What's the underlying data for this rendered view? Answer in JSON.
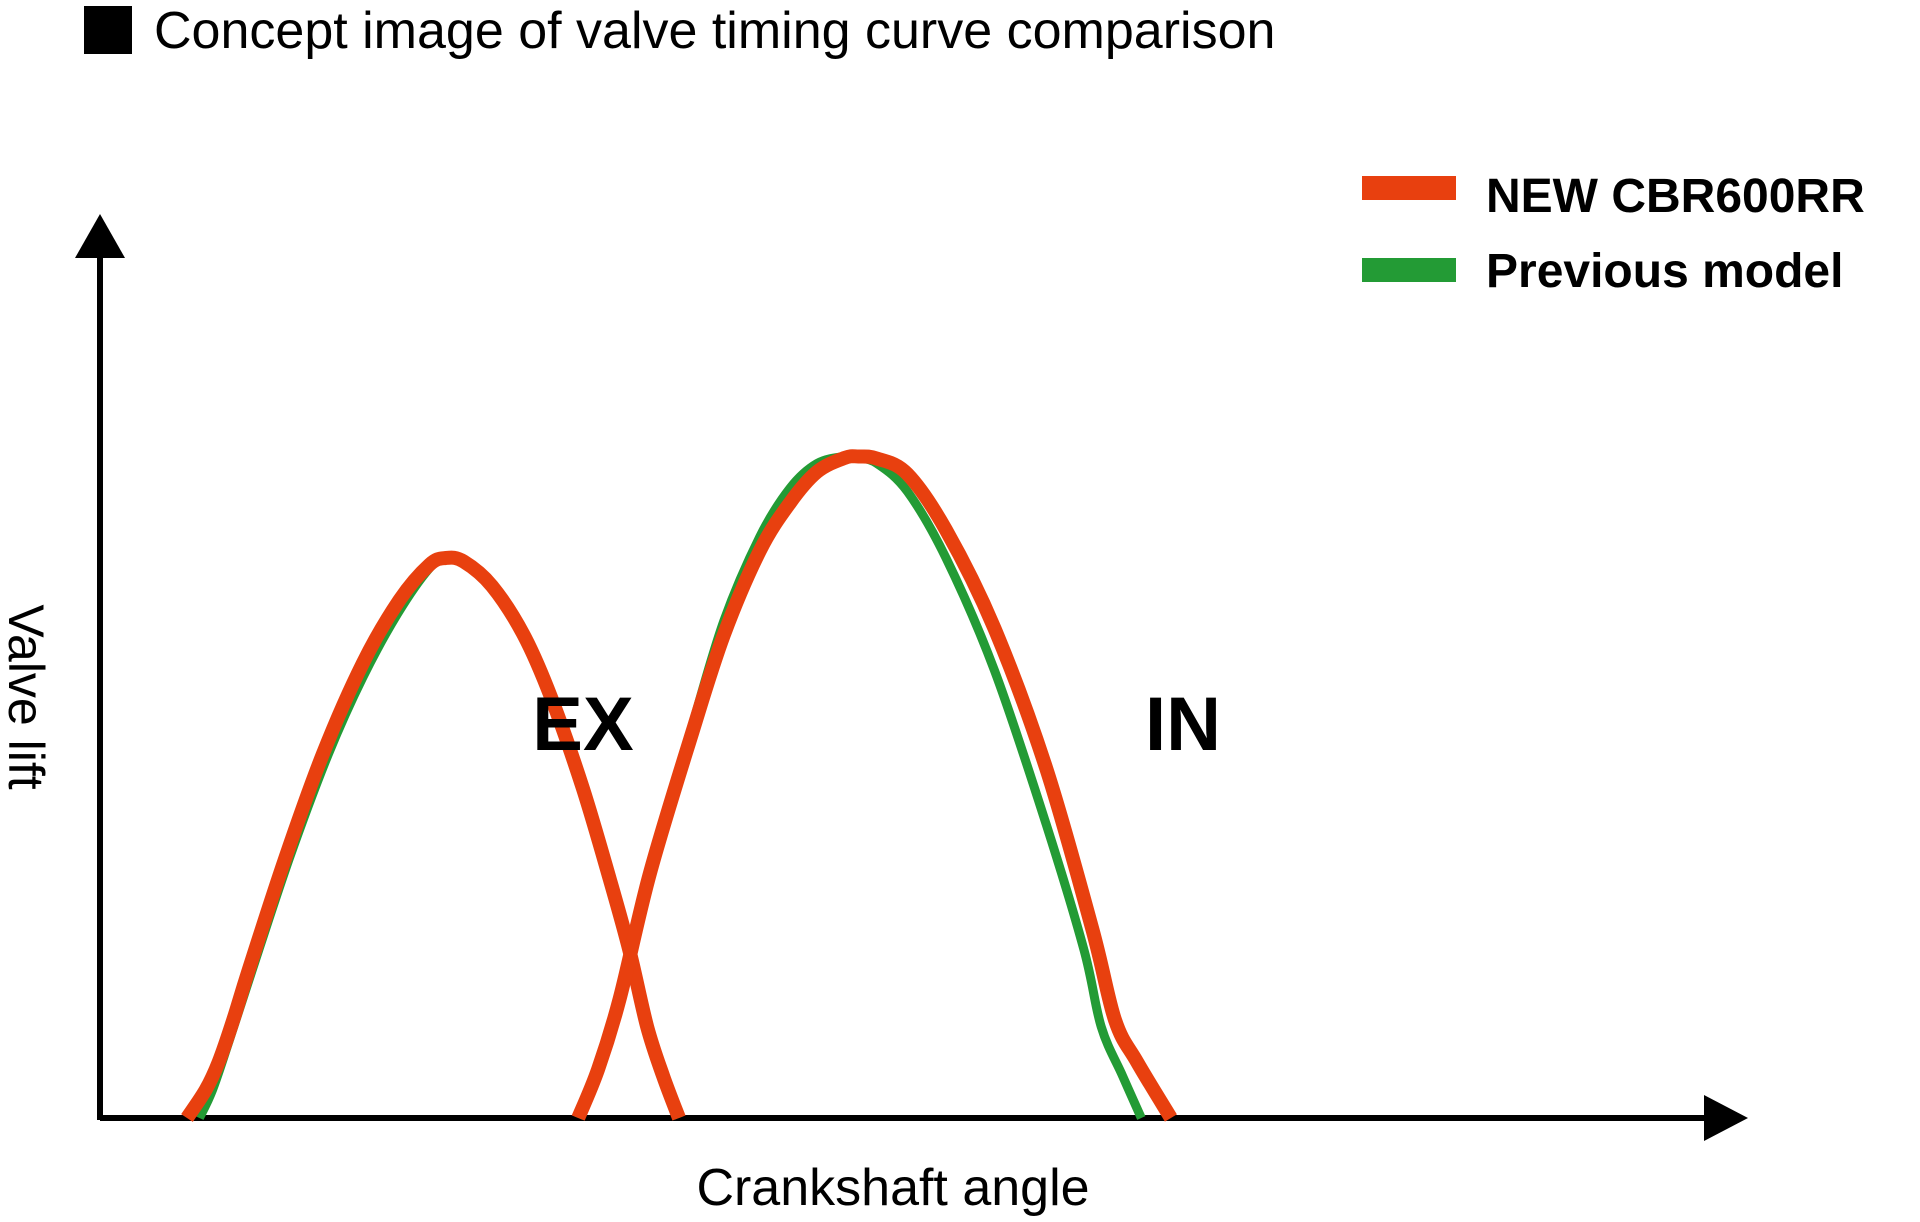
{
  "chart_data": {
    "type": "line",
    "title": "Concept image of valve timing curve comparison",
    "xlabel": "Crankshaft angle",
    "ylabel": "Valve lift",
    "legend_position": "top-right",
    "grid": false,
    "region_labels": [
      "EX",
      "IN"
    ],
    "series": [
      {
        "name": "NEW CBR600RR",
        "color": "#e8400f",
        "curves": [
          {
            "label": "EX",
            "points": [
              [
                0.0,
                0.0
              ],
              [
                0.027,
                0.04
              ],
              [
                0.046,
                0.08
              ],
              [
                0.067,
                0.14
              ],
              [
                0.089,
                0.21
              ],
              [
                0.142,
                0.37
              ],
              [
                0.197,
                0.52
              ],
              [
                0.255,
                0.65
              ],
              [
                0.308,
                0.74
              ],
              [
                0.351,
                0.79
              ],
              [
                0.375,
                0.8
              ],
              [
                0.401,
                0.795
              ],
              [
                0.442,
                0.76
              ],
              [
                0.488,
                0.69
              ],
              [
                0.528,
                0.6
              ],
              [
                0.574,
                0.47
              ],
              [
                0.613,
                0.34
              ],
              [
                0.641,
                0.24
              ],
              [
                0.667,
                0.13
              ],
              [
                0.69,
                0.06
              ],
              [
                0.713,
                0.0
              ]
            ]
          },
          {
            "label": "IN",
            "points": [
              [
                0.567,
                0.0
              ],
              [
                0.596,
                0.07
              ],
              [
                0.627,
                0.17
              ],
              [
                0.671,
                0.35
              ],
              [
                0.732,
                0.55
              ],
              [
                0.778,
                0.69
              ],
              [
                0.83,
                0.81
              ],
              [
                0.874,
                0.879
              ],
              [
                0.913,
                0.923
              ],
              [
                0.953,
                0.943
              ],
              [
                0.973,
                0.945
              ],
              [
                1.0,
                0.942
              ],
              [
                1.044,
                0.92
              ],
              [
                1.1,
                0.84
              ],
              [
                1.17,
                0.7
              ],
              [
                1.245,
                0.5
              ],
              [
                1.312,
                0.27
              ],
              [
                1.345,
                0.14
              ],
              [
                1.377,
                0.08
              ],
              [
                1.426,
                0.0
              ]
            ]
          }
        ]
      },
      {
        "name": "Previous model",
        "color": "#239b35",
        "curves": [
          {
            "label": "EX",
            "points": [
              [
                0.018,
                0.0
              ],
              [
                0.037,
                0.04
              ],
              [
                0.061,
                0.11
              ],
              [
                0.094,
                0.21
              ],
              [
                0.148,
                0.37
              ],
              [
                0.205,
                0.52
              ],
              [
                0.255,
                0.63
              ],
              [
                0.305,
                0.72
              ],
              [
                0.351,
                0.785
              ],
              [
                0.375,
                0.8
              ],
              [
                0.401,
                0.795
              ],
              [
                0.442,
                0.76
              ],
              [
                0.488,
                0.69
              ],
              [
                0.528,
                0.6
              ],
              [
                0.574,
                0.47
              ],
              [
                0.613,
                0.34
              ],
              [
                0.641,
                0.24
              ],
              [
                0.667,
                0.13
              ],
              [
                0.69,
                0.06
              ],
              [
                0.713,
                0.0
              ]
            ]
          },
          {
            "label": "IN",
            "points": [
              [
                0.567,
                0.0
              ],
              [
                0.596,
                0.07
              ],
              [
                0.627,
                0.17
              ],
              [
                0.671,
                0.35
              ],
              [
                0.732,
                0.56
              ],
              [
                0.778,
                0.71
              ],
              [
                0.83,
                0.83
              ],
              [
                0.874,
                0.9
              ],
              [
                0.913,
                0.935
              ],
              [
                0.953,
                0.945
              ],
              [
                0.973,
                0.943
              ],
              [
                1.0,
                0.935
              ],
              [
                1.044,
                0.895
              ],
              [
                1.1,
                0.8
              ],
              [
                1.17,
                0.64
              ],
              [
                1.245,
                0.42
              ],
              [
                1.3,
                0.24
              ],
              [
                1.325,
                0.13
              ],
              [
                1.356,
                0.06
              ],
              [
                1.383,
                0.0
              ]
            ]
          }
        ]
      }
    ]
  }
}
